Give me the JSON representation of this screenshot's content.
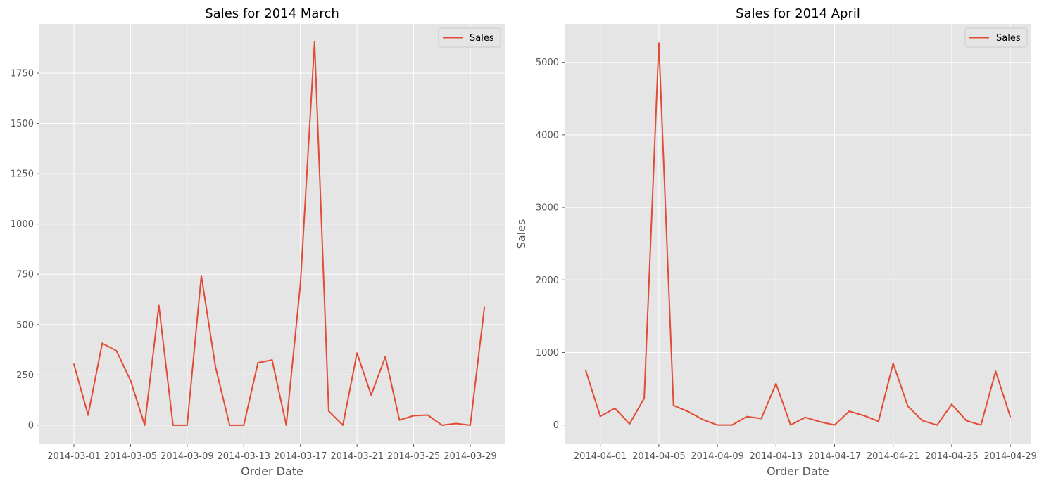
{
  "colors": {
    "series": "#E24A33",
    "plot_bg": "#E5E5E5",
    "grid": "#FFFFFF",
    "label": "#555555"
  },
  "chart_data": [
    {
      "type": "line",
      "title": "Sales for 2014 March",
      "xlabel": "Order Date",
      "ylabel": "",
      "x": [
        "2014-03-01",
        "2014-03-02",
        "2014-03-03",
        "2014-03-04",
        "2014-03-05",
        "2014-03-06",
        "2014-03-07",
        "2014-03-08",
        "2014-03-09",
        "2014-03-10",
        "2014-03-11",
        "2014-03-12",
        "2014-03-13",
        "2014-03-14",
        "2014-03-15",
        "2014-03-16",
        "2014-03-17",
        "2014-03-18",
        "2014-03-19",
        "2014-03-20",
        "2014-03-21",
        "2014-03-22",
        "2014-03-23",
        "2014-03-24",
        "2014-03-25",
        "2014-03-26",
        "2014-03-27",
        "2014-03-28",
        "2014-03-29",
        "2014-03-30"
      ],
      "series": [
        {
          "name": "Sales",
          "values": [
            303,
            50,
            407,
            370,
            222,
            0,
            595,
            0,
            0,
            743,
            290,
            0,
            0,
            310,
            324,
            0,
            700,
            1905,
            70,
            0,
            358,
            150,
            340,
            25,
            47,
            50,
            0,
            8,
            0,
            585
          ]
        }
      ],
      "xticks": [
        "2014-03-01",
        "2014-03-05",
        "2014-03-09",
        "2014-03-13",
        "2014-03-17",
        "2014-03-21",
        "2014-03-25",
        "2014-03-29"
      ],
      "yticks": [
        0,
        250,
        500,
        750,
        1000,
        1250,
        1500,
        1750
      ],
      "xlim": [
        "2014-02-26 13:30",
        "2014-03-31 10:30"
      ],
      "ylim": [
        -95,
        1995
      ],
      "legend": "top-right",
      "grid": true
    },
    {
      "type": "line",
      "title": "Sales for 2014 April",
      "xlabel": "Order Date",
      "ylabel": "Sales",
      "x": [
        "2014-03-31",
        "2014-04-01",
        "2014-04-02",
        "2014-04-03",
        "2014-04-04",
        "2014-04-05",
        "2014-04-06",
        "2014-04-07",
        "2014-04-08",
        "2014-04-09",
        "2014-04-10",
        "2014-04-11",
        "2014-04-12",
        "2014-04-13",
        "2014-04-14",
        "2014-04-15",
        "2014-04-16",
        "2014-04-17",
        "2014-04-18",
        "2014-04-19",
        "2014-04-20",
        "2014-04-21",
        "2014-04-22",
        "2014-04-23",
        "2014-04-24",
        "2014-04-25",
        "2014-04-26",
        "2014-04-27",
        "2014-04-28",
        "2014-04-29"
      ],
      "series": [
        {
          "name": "Sales",
          "values": [
            755,
            120,
            230,
            15,
            370,
            5265,
            270,
            185,
            75,
            0,
            0,
            115,
            90,
            570,
            0,
            105,
            45,
            0,
            190,
            130,
            50,
            850,
            260,
            60,
            0,
            285,
            60,
            0,
            740,
            115
          ]
        }
      ],
      "xticks": [
        "2014-04-01",
        "2014-04-05",
        "2014-04-09",
        "2014-04-13",
        "2014-04-17",
        "2014-04-21",
        "2014-04-25",
        "2014-04-29"
      ],
      "yticks": [
        0,
        1000,
        2000,
        3000,
        4000,
        5000
      ],
      "xlim": [
        "2014-03-29 13:30",
        "2014-04-30 10:30"
      ],
      "ylim": [
        -265,
        5530
      ],
      "legend": "top-right",
      "grid": true
    }
  ]
}
